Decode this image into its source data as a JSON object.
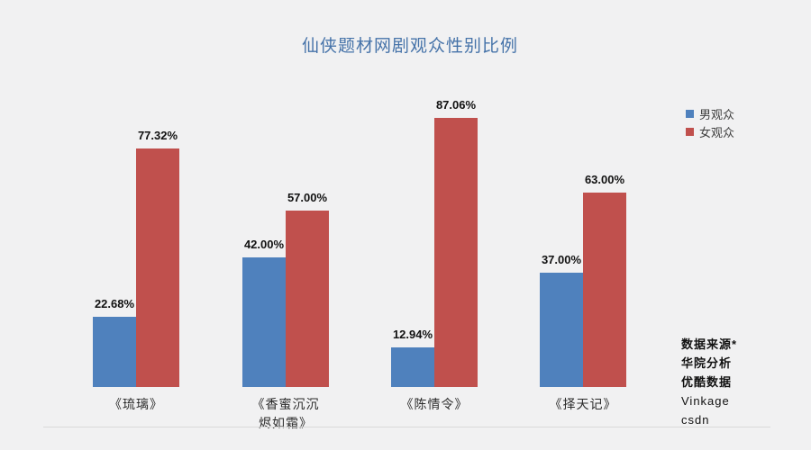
{
  "page": {
    "background": "#f1f1f2"
  },
  "title": {
    "text": "仙侠题材网剧观众性别比例",
    "color": "#4673a9"
  },
  "legend": {
    "items": [
      {
        "label": "男观众",
        "color": "#4f81bd"
      },
      {
        "label": "女观众",
        "color": "#c0504d"
      }
    ]
  },
  "chart_data": {
    "type": "bar",
    "title": "仙侠题材网剧观众性别比例",
    "categories": [
      "《琉璃》",
      "《香蜜沉沉烬如霜》",
      "《陈情令》",
      "《择天记》"
    ],
    "category_label_lines": [
      [
        "《琉璃》"
      ],
      [
        "《香蜜沉沉",
        "烬如霜》"
      ],
      [
        "《陈情令》"
      ],
      [
        "《择天记》"
      ]
    ],
    "series": [
      {
        "name": "男观众",
        "color": "#4f81bd",
        "values": [
          22.68,
          42.0,
          12.94,
          37.0
        ],
        "labels": [
          "22.68%",
          "42.00%",
          "12.94%",
          "37.00%"
        ]
      },
      {
        "name": "女观众",
        "color": "#c0504d",
        "values": [
          77.32,
          57.0,
          87.06,
          63.0
        ],
        "labels": [
          "77.32%",
          "57.00%",
          "87.06%",
          "63.00%"
        ]
      }
    ],
    "ylim": [
      0,
      100
    ],
    "grid": false,
    "legend_position": "right"
  },
  "source_note": {
    "lines": [
      "数据来源*",
      "华院分析",
      "优酷数据",
      "Vinkage",
      "csdn"
    ]
  }
}
